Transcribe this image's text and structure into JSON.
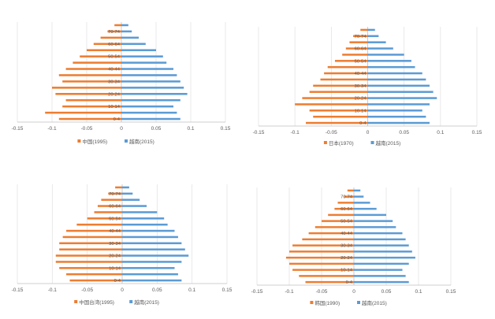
{
  "colors": {
    "left_series": "#ED7D31",
    "right_series": "#5B9BD5"
  },
  "chart_data": [
    {
      "type": "bar",
      "orientation": "horizontal-diverging",
      "xlim": [
        -0.15,
        0.15
      ],
      "x_ticks": [
        "-0.15",
        "-0.1",
        "-0.05",
        "0",
        "0.05",
        "0.1",
        "0.15"
      ],
      "age_labels_shown": [
        "70-74",
        "60-64",
        "50-54",
        "40-44",
        "30-34",
        "20-24",
        "10-14",
        "0-4"
      ],
      "grid": true,
      "legend_position": "bottom",
      "series": [
        {
          "name": "中国(1995)",
          "values": [
            0.09,
            0.11,
            0.085,
            0.08,
            0.095,
            0.1,
            0.085,
            0.09,
            0.08,
            0.07,
            0.06,
            0.05,
            0.04,
            0.03,
            0.02,
            0.01
          ]
        },
        {
          "name": "越南(2015)",
          "values": [
            0.085,
            0.08,
            0.075,
            0.085,
            0.095,
            0.09,
            0.085,
            0.08,
            0.075,
            0.065,
            0.06,
            0.05,
            0.035,
            0.025,
            0.015,
            0.01
          ]
        }
      ]
    },
    {
      "type": "bar",
      "orientation": "horizontal-diverging",
      "xlim": [
        -0.15,
        0.15
      ],
      "x_ticks": [
        "-0.15",
        "-0.1",
        "-0.05",
        "0",
        "0.05",
        "0.1",
        "0.15"
      ],
      "age_labels_shown": [
        "70-74",
        "60-64",
        "50-54",
        "40-44",
        "30-34",
        "20-24",
        "10-14",
        "0-4"
      ],
      "grid": true,
      "legend_position": "bottom",
      "series": [
        {
          "name": "日本(1970)",
          "values": [
            0.085,
            0.075,
            0.08,
            0.1,
            0.09,
            0.08,
            0.075,
            0.065,
            0.06,
            0.055,
            0.045,
            0.035,
            0.03,
            0.025,
            0.02,
            0.01
          ]
        },
        {
          "name": "越南(2015)",
          "values": [
            0.085,
            0.08,
            0.075,
            0.085,
            0.095,
            0.09,
            0.085,
            0.08,
            0.075,
            0.065,
            0.06,
            0.05,
            0.035,
            0.025,
            0.015,
            0.01
          ]
        }
      ]
    },
    {
      "type": "bar",
      "orientation": "horizontal-diverging",
      "xlim": [
        -0.15,
        0.15
      ],
      "x_ticks": [
        "-0.15",
        "-0.1",
        "-0.05",
        "0",
        "0.05",
        "0.1",
        "0.15"
      ],
      "age_labels_shown": [
        "70-74",
        "60-64",
        "50-54",
        "40-44",
        "30-34",
        "20-24",
        "10-14",
        "0-4"
      ],
      "grid": true,
      "legend_position": "bottom",
      "series": [
        {
          "name": "中国台湾(1995)",
          "values": [
            0.075,
            0.08,
            0.09,
            0.095,
            0.095,
            0.09,
            0.09,
            0.085,
            0.08,
            0.065,
            0.05,
            0.04,
            0.035,
            0.03,
            0.02,
            0.01
          ]
        },
        {
          "name": "越南(2015)",
          "values": [
            0.085,
            0.08,
            0.075,
            0.085,
            0.095,
            0.09,
            0.085,
            0.08,
            0.075,
            0.065,
            0.06,
            0.05,
            0.035,
            0.025,
            0.015,
            0.01
          ]
        }
      ]
    },
    {
      "type": "bar",
      "orientation": "horizontal-diverging",
      "xlim": [
        -0.15,
        0.15
      ],
      "x_ticks": [
        "-0.15",
        "-0.1",
        "-0.05",
        "0",
        "0.05",
        "0.1",
        "0.15"
      ],
      "age_labels_shown": [
        "70-74",
        "60-64",
        "50-54",
        "40-44",
        "30-34",
        "20-24",
        "10-14",
        "0-4"
      ],
      "grid": true,
      "legend_position": "bottom",
      "series": [
        {
          "name": "韩国(1990)",
          "values": [
            0.075,
            0.085,
            0.095,
            0.1,
            0.105,
            0.1,
            0.095,
            0.08,
            0.07,
            0.06,
            0.05,
            0.04,
            0.03,
            0.025,
            0.015,
            0.01
          ]
        },
        {
          "name": "越南(2015)",
          "values": [
            0.085,
            0.08,
            0.075,
            0.085,
            0.095,
            0.09,
            0.085,
            0.08,
            0.075,
            0.065,
            0.06,
            0.05,
            0.035,
            0.025,
            0.015,
            0.01
          ]
        }
      ]
    }
  ]
}
